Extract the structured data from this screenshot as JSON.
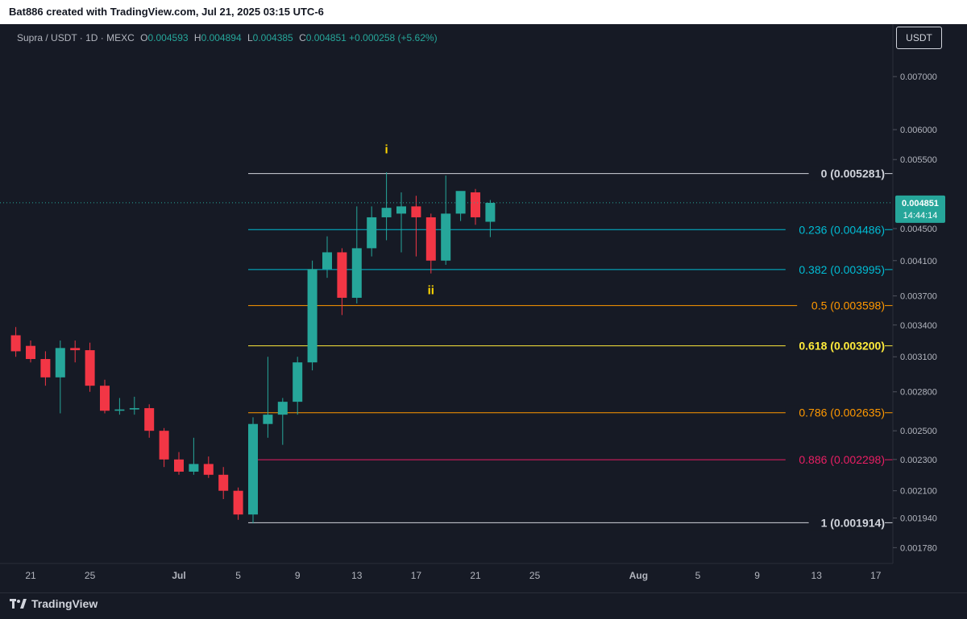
{
  "header": {
    "attribution": "Bat886 created with TradingView.com, Jul 21, 2025 03:15 UTC-6"
  },
  "legend": {
    "symbol": "Supra / USDT · 1D · MEXC",
    "o_label": "O",
    "o_value": "0.004593",
    "h_label": "H",
    "h_value": "0.004894",
    "l_label": "L",
    "l_value": "0.004385",
    "c_label": "C",
    "c_value": "0.004851",
    "change": "+0.000258 (+5.62%)"
  },
  "currency": "USDT",
  "footer": {
    "brand": "TradingView"
  },
  "colors": {
    "up": "#26a69a",
    "down": "#f23645",
    "background": "#161a25",
    "fib_white": "#d1d4dc",
    "fib_cyan": "#00bcd4",
    "fib_orange": "#ff9800",
    "fib_yellow": "#ffeb3b",
    "fib_pink": "#e91e63",
    "wave_label": "#ffd600"
  },
  "chart_data": {
    "type": "candlestick",
    "y_scale": "log",
    "ylim": [
      0.0017,
      0.0076
    ],
    "y_ticks": [
      {
        "label": "0.007000",
        "value": 0.007
      },
      {
        "label": "0.006000",
        "value": 0.006
      },
      {
        "label": "0.005500",
        "value": 0.0055
      },
      {
        "label": "0.004500",
        "value": 0.0045
      },
      {
        "label": "0.004100",
        "value": 0.0041
      },
      {
        "label": "0.003700",
        "value": 0.0037
      },
      {
        "label": "0.003400",
        "value": 0.0034
      },
      {
        "label": "0.003100",
        "value": 0.0031
      },
      {
        "label": "0.002800",
        "value": 0.0028
      },
      {
        "label": "0.002500",
        "value": 0.0025
      },
      {
        "label": "0.002300",
        "value": 0.0023
      },
      {
        "label": "0.002100",
        "value": 0.0021
      },
      {
        "label": "0.001940",
        "value": 0.00194
      },
      {
        "label": "0.001780",
        "value": 0.00178
      }
    ],
    "x_ticks": [
      {
        "label": "21",
        "date": "2025-06-21"
      },
      {
        "label": "25",
        "date": "2025-06-25"
      },
      {
        "label": "Jul",
        "date": "2025-07-01"
      },
      {
        "label": "5",
        "date": "2025-07-05"
      },
      {
        "label": "9",
        "date": "2025-07-09"
      },
      {
        "label": "13",
        "date": "2025-07-13"
      },
      {
        "label": "17",
        "date": "2025-07-17"
      },
      {
        "label": "21",
        "date": "2025-07-21"
      },
      {
        "label": "25",
        "date": "2025-07-25"
      },
      {
        "label": "Aug",
        "date": "2025-08-01"
      },
      {
        "label": "5",
        "date": "2025-08-05"
      },
      {
        "label": "9",
        "date": "2025-08-09"
      },
      {
        "label": "13",
        "date": "2025-08-13"
      },
      {
        "label": "17",
        "date": "2025-08-17"
      }
    ],
    "candles": [
      {
        "date": "2025-06-20",
        "o": 0.0033,
        "h": 0.00338,
        "l": 0.0031,
        "c": 0.00315
      },
      {
        "date": "2025-06-21",
        "o": 0.0032,
        "h": 0.00325,
        "l": 0.00305,
        "c": 0.00308
      },
      {
        "date": "2025-06-22",
        "o": 0.00308,
        "h": 0.00315,
        "l": 0.00285,
        "c": 0.00292
      },
      {
        "date": "2025-06-23",
        "o": 0.00292,
        "h": 0.00325,
        "l": 0.00263,
        "c": 0.00318
      },
      {
        "date": "2025-06-24",
        "o": 0.00318,
        "h": 0.00325,
        "l": 0.00305,
        "c": 0.00316
      },
      {
        "date": "2025-06-25",
        "o": 0.00316,
        "h": 0.00323,
        "l": 0.0028,
        "c": 0.00285
      },
      {
        "date": "2025-06-26",
        "o": 0.00285,
        "h": 0.0029,
        "l": 0.00263,
        "c": 0.00265
      },
      {
        "date": "2025-06-27",
        "o": 0.00265,
        "h": 0.00275,
        "l": 0.00262,
        "c": 0.00266
      },
      {
        "date": "2025-06-28",
        "o": 0.00266,
        "h": 0.00276,
        "l": 0.00262,
        "c": 0.00267
      },
      {
        "date": "2025-06-29",
        "o": 0.00267,
        "h": 0.0027,
        "l": 0.00245,
        "c": 0.0025
      },
      {
        "date": "2025-06-30",
        "o": 0.0025,
        "h": 0.00252,
        "l": 0.00225,
        "c": 0.0023
      },
      {
        "date": "2025-07-01",
        "o": 0.0023,
        "h": 0.00235,
        "l": 0.0022,
        "c": 0.00222
      },
      {
        "date": "2025-07-02",
        "o": 0.00222,
        "h": 0.00245,
        "l": 0.0022,
        "c": 0.00227
      },
      {
        "date": "2025-07-03",
        "o": 0.00227,
        "h": 0.00232,
        "l": 0.00218,
        "c": 0.0022
      },
      {
        "date": "2025-07-04",
        "o": 0.0022,
        "h": 0.00225,
        "l": 0.00205,
        "c": 0.0021
      },
      {
        "date": "2025-07-05",
        "o": 0.0021,
        "h": 0.00212,
        "l": 0.00193,
        "c": 0.00196
      },
      {
        "date": "2025-07-06",
        "o": 0.00196,
        "h": 0.0026,
        "l": 0.00191,
        "c": 0.00255
      },
      {
        "date": "2025-07-07",
        "o": 0.00255,
        "h": 0.0031,
        "l": 0.00245,
        "c": 0.00262
      },
      {
        "date": "2025-07-08",
        "o": 0.00262,
        "h": 0.00275,
        "l": 0.0024,
        "c": 0.00272
      },
      {
        "date": "2025-07-09",
        "o": 0.00272,
        "h": 0.0031,
        "l": 0.00262,
        "c": 0.00305
      },
      {
        "date": "2025-07-10",
        "o": 0.00305,
        "h": 0.0041,
        "l": 0.00298,
        "c": 0.004
      },
      {
        "date": "2025-07-11",
        "o": 0.004,
        "h": 0.0044,
        "l": 0.0039,
        "c": 0.0042
      },
      {
        "date": "2025-07-12",
        "o": 0.0042,
        "h": 0.00425,
        "l": 0.0035,
        "c": 0.00368
      },
      {
        "date": "2025-07-13",
        "o": 0.00368,
        "h": 0.0048,
        "l": 0.00362,
        "c": 0.00425
      },
      {
        "date": "2025-07-14",
        "o": 0.00425,
        "h": 0.0048,
        "l": 0.00415,
        "c": 0.00465
      },
      {
        "date": "2025-07-15",
        "o": 0.00465,
        "h": 0.0053,
        "l": 0.00435,
        "c": 0.00478
      },
      {
        "date": "2025-07-16",
        "o": 0.0047,
        "h": 0.005,
        "l": 0.0042,
        "c": 0.0048
      },
      {
        "date": "2025-07-17",
        "o": 0.0048,
        "h": 0.00495,
        "l": 0.00415,
        "c": 0.00465
      },
      {
        "date": "2025-07-18",
        "o": 0.00465,
        "h": 0.0047,
        "l": 0.00395,
        "c": 0.0041
      },
      {
        "date": "2025-07-19",
        "o": 0.0041,
        "h": 0.00525,
        "l": 0.00405,
        "c": 0.0047
      },
      {
        "date": "2025-07-20",
        "o": 0.0047,
        "h": 0.005,
        "l": 0.0046,
        "c": 0.00502
      },
      {
        "date": "2025-07-21",
        "o": 0.005,
        "h": 0.00505,
        "l": 0.00455,
        "c": 0.00465
      },
      {
        "date": "2025-07-22",
        "o": 0.00459,
        "h": 0.00489,
        "l": 0.00439,
        "c": 0.00485
      }
    ],
    "fib_levels": [
      {
        "label": "0 (0.005281)",
        "value": 0.005281,
        "color": "#d1d4dc",
        "bold": true
      },
      {
        "label": "0.236 (0.004486)",
        "value": 0.004486,
        "color": "#00bcd4",
        "bold": false
      },
      {
        "label": "0.382 (0.003995)",
        "value": 0.003995,
        "color": "#00bcd4",
        "bold": false
      },
      {
        "label": "0.5 (0.003598)",
        "value": 0.003598,
        "color": "#ff9800",
        "bold": false
      },
      {
        "label": "0.618 (0.003200)",
        "value": 0.0032,
        "color": "#ffeb3b",
        "bold": true
      },
      {
        "label": "0.786 (0.002635)",
        "value": 0.002635,
        "color": "#ff9800",
        "bold": false
      },
      {
        "label": "0.886 (0.002298)",
        "value": 0.002298,
        "color": "#e91e63",
        "bold": false
      },
      {
        "label": "1 (0.001914)",
        "value": 0.001914,
        "color": "#d1d4dc",
        "bold": true
      }
    ],
    "fib_start_date": "2025-07-06",
    "wave_labels": [
      {
        "label": "i",
        "date": "2025-07-15",
        "value": 0.0056
      },
      {
        "label": "ii",
        "date": "2025-07-18",
        "value": 0.00372
      }
    ],
    "last_price": {
      "value": 0.004851,
      "label": "0.004851",
      "countdown": "14:44:14"
    }
  }
}
